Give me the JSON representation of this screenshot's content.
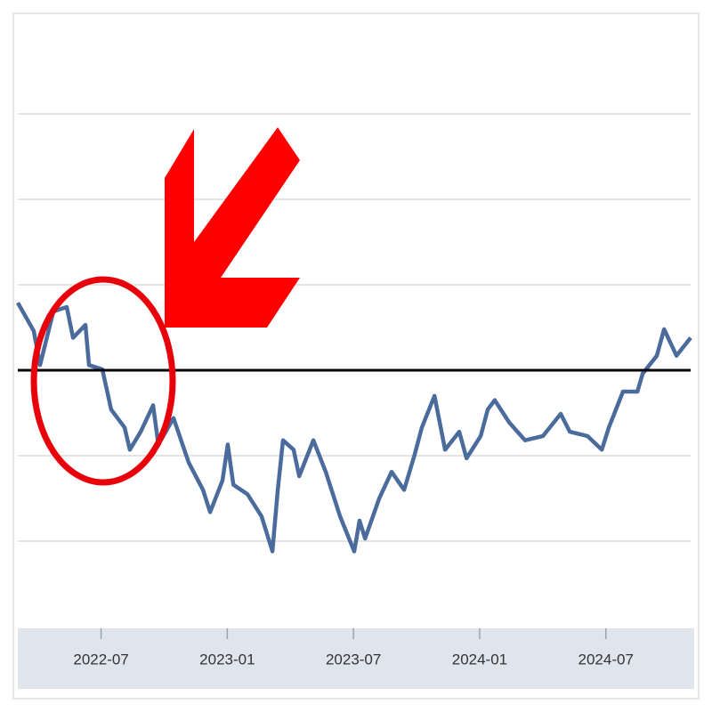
{
  "chart_data": {
    "type": "line",
    "x": [
      2022.17,
      2022.233,
      2022.258,
      2022.311,
      2022.364,
      2022.389,
      2022.438,
      2022.452,
      2022.505,
      2022.54,
      2022.593,
      2022.614,
      2022.657,
      2022.706,
      2022.727,
      2022.787,
      2022.847,
      2022.904,
      2022.932,
      2022.981,
      2023.002,
      2023.024,
      2023.08,
      2023.136,
      2023.179,
      2023.2,
      2023.221,
      2023.263,
      2023.285,
      2023.341,
      2023.39,
      2023.447,
      2023.503,
      2023.524,
      2023.546,
      2023.602,
      2023.651,
      2023.701,
      2023.743,
      2023.771,
      2023.821,
      2023.863,
      2023.919,
      2023.948,
      2024.004,
      2024.032,
      2024.06,
      2024.117,
      2024.18,
      2024.251,
      2024.321,
      2024.357,
      2024.427,
      2024.484,
      2024.512,
      2024.568,
      2024.625,
      2024.646,
      2024.702,
      2024.731,
      2024.78,
      2024.836
    ],
    "series": [
      {
        "color": "#4a6b9b",
        "values": [
          3.79,
          3.46,
          3.06,
          3.69,
          3.74,
          3.38,
          3.53,
          3.06,
          3.01,
          2.54,
          2.33,
          2.07,
          2.28,
          2.59,
          2.13,
          2.44,
          1.92,
          1.6,
          1.34,
          1.71,
          2.13,
          1.66,
          1.55,
          1.29,
          0.88,
          1.6,
          2.18,
          2.07,
          1.76,
          2.18,
          1.81,
          1.29,
          0.88,
          1.24,
          1.03,
          1.5,
          1.81,
          1.6,
          2.02,
          2.33,
          2.7,
          2.07,
          2.28,
          1.97,
          2.23,
          2.54,
          2.65,
          2.39,
          2.18,
          2.23,
          2.49,
          2.28,
          2.23,
          2.07,
          2.33,
          2.75,
          2.75,
          2.96,
          3.17,
          3.48,
          3.17,
          3.38
        ]
      }
    ],
    "xlim": [
      2022.17,
      2024.836
    ],
    "xticks": [
      {
        "value": 2022.5,
        "label": "2022-07"
      },
      {
        "value": 2023.0,
        "label": "2023-01"
      },
      {
        "value": 2023.5,
        "label": "2023-07"
      },
      {
        "value": 2024.0,
        "label": "2024-01"
      },
      {
        "value": 2024.5,
        "label": "2024-07"
      }
    ],
    "ylim": [
      0,
      7
    ],
    "yticks": [
      1,
      2,
      3,
      4,
      5,
      6
    ],
    "hline": 3,
    "grid": true
  }
}
